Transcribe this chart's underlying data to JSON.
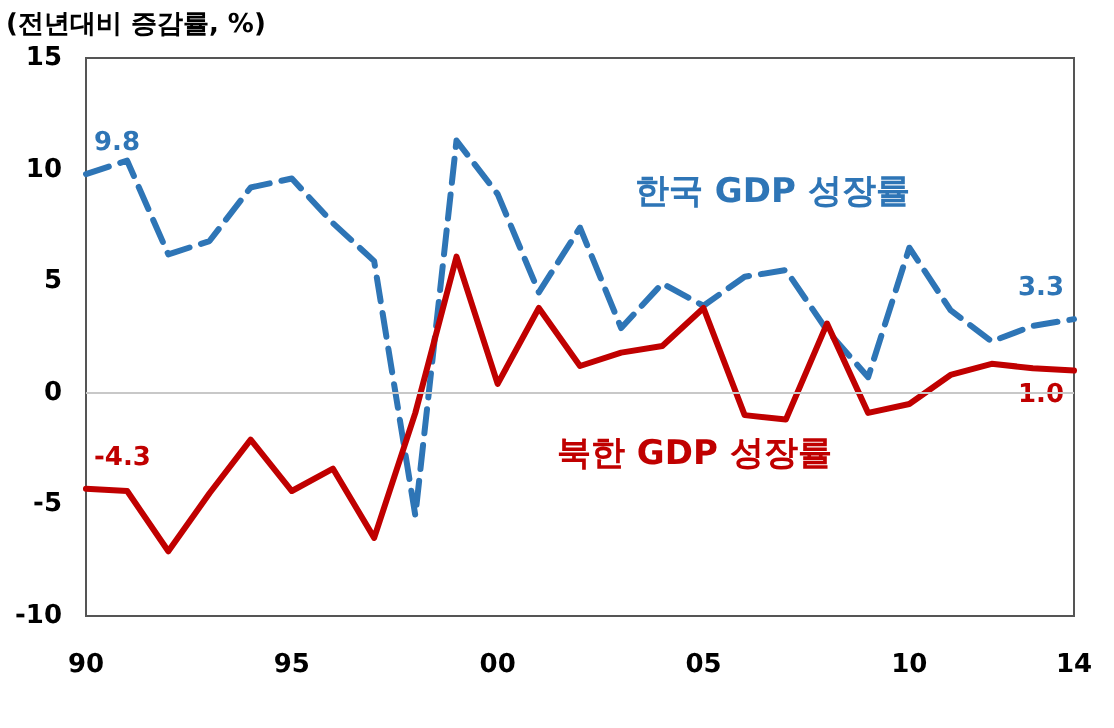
{
  "chart_data": {
    "type": "line",
    "ylabel": "(전년대비 증감률, %)",
    "categories": [
      "90",
      null,
      null,
      null,
      null,
      "95",
      null,
      null,
      null,
      null,
      "00",
      null,
      null,
      null,
      null,
      "05",
      null,
      null,
      null,
      null,
      "10",
      null,
      null,
      null,
      "14"
    ],
    "series": [
      {
        "name": "한국 GDP 성장률",
        "color": "#2e75b6",
        "line_style": "dashed",
        "values": [
          9.8,
          10.4,
          6.2,
          6.8,
          9.2,
          9.6,
          7.6,
          5.9,
          -5.5,
          11.3,
          8.9,
          4.5,
          7.4,
          2.9,
          4.9,
          3.9,
          5.2,
          5.5,
          2.8,
          0.7,
          6.5,
          3.7,
          2.3,
          3.0,
          3.3
        ],
        "value_labels": [
          "9.8",
          null,
          null,
          null,
          null,
          null,
          null,
          null,
          null,
          null,
          null,
          null,
          null,
          null,
          null,
          null,
          null,
          null,
          null,
          null,
          null,
          null,
          null,
          null,
          "3.3"
        ]
      },
      {
        "name": "북한 GDP 성장률",
        "color": "#c00000",
        "line_style": "solid",
        "values": [
          -4.3,
          -4.4,
          -7.1,
          -4.5,
          -2.1,
          -4.4,
          -3.4,
          -6.5,
          -0.9,
          6.1,
          0.4,
          3.8,
          1.2,
          1.8,
          2.1,
          3.8,
          -1.0,
          -1.2,
          3.1,
          -0.9,
          -0.5,
          0.8,
          1.3,
          1.1,
          1.0
        ],
        "value_labels": [
          "-4.3",
          null,
          null,
          null,
          null,
          null,
          null,
          null,
          null,
          null,
          null,
          null,
          null,
          null,
          null,
          null,
          null,
          null,
          null,
          null,
          null,
          null,
          null,
          null,
          "1.0"
        ]
      }
    ],
    "ylim": [
      -10,
      15
    ],
    "yticks": [
      -10,
      -5,
      0,
      5,
      10,
      15
    ],
    "grid": false,
    "legend": false,
    "marker": "none",
    "ref_lines": [
      {
        "axis": "y",
        "value": 0,
        "color": "#c8c8c8"
      }
    ]
  }
}
